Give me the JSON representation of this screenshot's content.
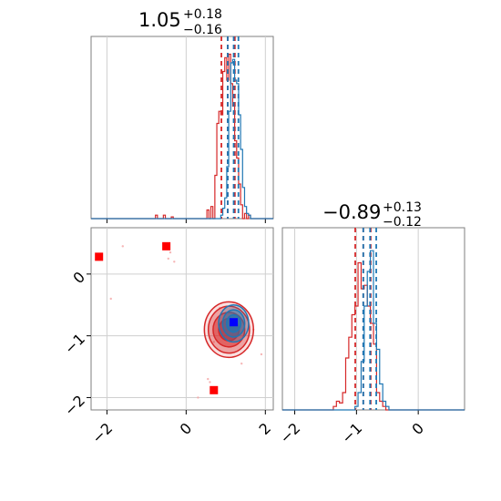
{
  "chart_data": [
    {
      "type": "histogram",
      "title": {
        "main": "1.05",
        "sup": "+0.18",
        "sub": "−0.16"
      },
      "xlim": [
        -2.4,
        2.2
      ],
      "xticks": [
        -2,
        0,
        2
      ],
      "series": [
        {
          "name": "",
          "color": "#d62728",
          "bins": [
            [
              -0.75,
              0.02
            ],
            [
              -0.55,
              0.02
            ],
            [
              -0.35,
              0.01
            ],
            [
              0.55,
              0.05
            ],
            [
              0.65,
              0.07
            ],
            [
              0.75,
              0.25
            ],
            [
              0.8,
              0.55
            ],
            [
              0.85,
              0.62
            ],
            [
              0.9,
              0.6
            ],
            [
              0.95,
              0.85
            ],
            [
              1.0,
              0.93
            ],
            [
              1.05,
              0.8
            ],
            [
              1.1,
              0.95
            ],
            [
              1.15,
              0.78
            ],
            [
              1.2,
              0.65
            ],
            [
              1.25,
              0.45
            ],
            [
              1.3,
              0.35
            ],
            [
              1.35,
              0.2
            ],
            [
              1.4,
              0.08
            ],
            [
              1.5,
              0.03
            ],
            [
              1.6,
              0.02
            ]
          ],
          "dashed": [
            0.89,
            1.05,
            1.23
          ]
        },
        {
          "name": "",
          "color": "#1f77b4",
          "bins": [
            [
              0.9,
              0.02
            ],
            [
              0.95,
              0.06
            ],
            [
              1.0,
              0.12
            ],
            [
              1.05,
              0.3
            ],
            [
              1.1,
              0.62
            ],
            [
              1.15,
              0.9
            ],
            [
              1.2,
              0.92
            ],
            [
              1.25,
              0.8
            ],
            [
              1.3,
              0.78
            ],
            [
              1.35,
              0.6
            ],
            [
              1.4,
              0.4
            ],
            [
              1.45,
              0.18
            ],
            [
              1.5,
              0.07
            ],
            [
              1.55,
              0.03
            ],
            [
              1.6,
              0.02
            ]
          ],
          "dashed": [
            1.05,
            1.2,
            1.32
          ]
        }
      ]
    },
    {
      "type": "scatter",
      "xlim": [
        -2.4,
        2.2
      ],
      "ylim": [
        -2.2,
        0.75
      ],
      "xticks": [
        -2,
        0,
        2
      ],
      "yticks": [
        0,
        -1,
        -2
      ],
      "markers": [
        {
          "color": "#ff0000",
          "x": -2.2,
          "y": 0.28
        },
        {
          "color": "#ff0000",
          "x": -0.5,
          "y": 0.45
        },
        {
          "color": "#ff0000",
          "x": 0.7,
          "y": -1.88
        },
        {
          "color": "#0000ff",
          "x": 1.2,
          "y": -0.78
        }
      ],
      "contours": [
        {
          "color": "#d62728",
          "cx": 1.08,
          "cy": -0.9,
          "levels": [
            [
              0.62,
              0.45
            ],
            [
              0.52,
              0.38
            ],
            [
              0.4,
              0.28
            ],
            [
              0.26,
              0.18
            ]
          ]
        },
        {
          "color": "#1f77b4",
          "cx": 1.2,
          "cy": -0.8,
          "levels": [
            [
              0.38,
              0.3
            ],
            [
              0.28,
              0.22
            ],
            [
              0.18,
              0.14
            ]
          ]
        }
      ]
    },
    {
      "type": "histogram",
      "title": {
        "main": "−0.89",
        "sup": "+0.13",
        "sub": "−0.12"
      },
      "xlim": [
        -2.2,
        0.75
      ],
      "xticks": [
        -2,
        -1,
        0
      ],
      "series": [
        {
          "name": "",
          "color": "#d62728",
          "bins": [
            [
              -1.35,
              0.02
            ],
            [
              -1.3,
              0.05
            ],
            [
              -1.25,
              0.04
            ],
            [
              -1.2,
              0.1
            ],
            [
              -1.15,
              0.3
            ],
            [
              -1.1,
              0.42
            ],
            [
              -1.05,
              0.55
            ],
            [
              -1.0,
              0.6
            ],
            [
              -0.95,
              0.85
            ],
            [
              -0.9,
              0.7
            ],
            [
              -0.85,
              0.72
            ],
            [
              -0.8,
              0.6
            ],
            [
              -0.75,
              0.5
            ],
            [
              -0.7,
              0.38
            ],
            [
              -0.65,
              0.1
            ],
            [
              -0.6,
              0.05
            ],
            [
              -0.55,
              0.02
            ]
          ],
          "dashed": [
            -1.02,
            -0.89,
            -0.77
          ]
        },
        {
          "name": "",
          "color": "#1f77b4",
          "bins": [
            [
              -1.0,
              0.02
            ],
            [
              -0.95,
              0.1
            ],
            [
              -0.9,
              0.28
            ],
            [
              -0.85,
              0.6
            ],
            [
              -0.8,
              0.8
            ],
            [
              -0.75,
              0.92
            ],
            [
              -0.7,
              0.5
            ],
            [
              -0.65,
              0.35
            ],
            [
              -0.6,
              0.15
            ],
            [
              -0.55,
              0.05
            ],
            [
              -0.5,
              0.02
            ]
          ],
          "dashed": [
            -0.89,
            -0.78,
            -0.68
          ]
        }
      ]
    }
  ]
}
